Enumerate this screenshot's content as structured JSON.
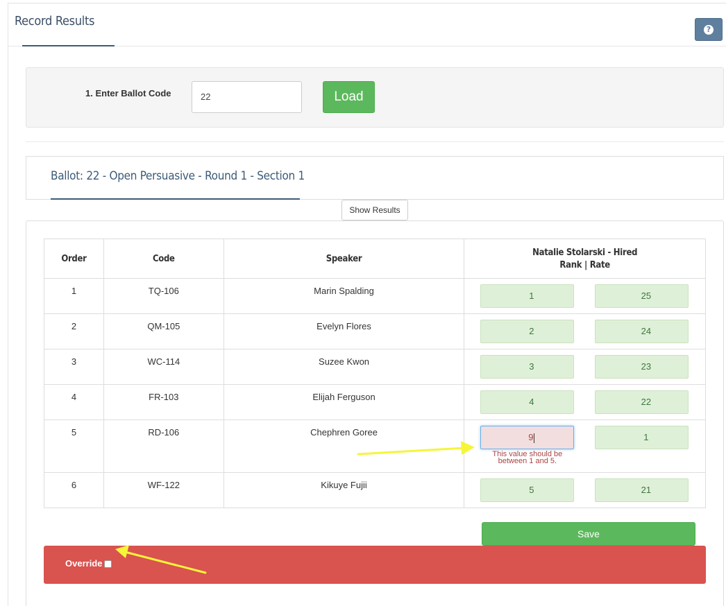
{
  "header": {
    "title": "Record Results"
  },
  "ballot_entry": {
    "label": "1. Enter Ballot Code",
    "value": "22",
    "load_label": "Load"
  },
  "ballot": {
    "title": "Ballot: 22 - Open Persuasive - Round 1 - Section 1",
    "show_results_label": "Show Results"
  },
  "table": {
    "headers": {
      "order": "Order",
      "code": "Code",
      "speaker": "Speaker",
      "judge": "Natalie Stolarski - Hired",
      "judge_sub": "Rank | Rate"
    },
    "rows": [
      {
        "order": "1",
        "code": "TQ-106",
        "speaker": "Marin Spalding",
        "rank": "1",
        "rate": "25"
      },
      {
        "order": "2",
        "code": "QM-105",
        "speaker": "Evelyn Flores",
        "rank": "2",
        "rate": "24"
      },
      {
        "order": "3",
        "code": "WC-114",
        "speaker": "Suzee Kwon",
        "rank": "3",
        "rate": "23"
      },
      {
        "order": "4",
        "code": "FR-103",
        "speaker": "Elijah Ferguson",
        "rank": "4",
        "rate": "22"
      },
      {
        "order": "5",
        "code": "RD-106",
        "speaker": "Chephren Goree",
        "rank": "9",
        "rate": "1",
        "error": "This value should be between 1 and 5."
      },
      {
        "order": "6",
        "code": "WF-122",
        "speaker": "Kikuye Fujii",
        "rank": "5",
        "rate": "21"
      }
    ]
  },
  "actions": {
    "save_label": "Save",
    "override_label": "Override"
  },
  "colors": {
    "success": "#5cb85c",
    "danger": "#d9534f",
    "annotation": "#f5f53a",
    "valid_field": "#dff0d8",
    "error_field": "#f2dede"
  }
}
